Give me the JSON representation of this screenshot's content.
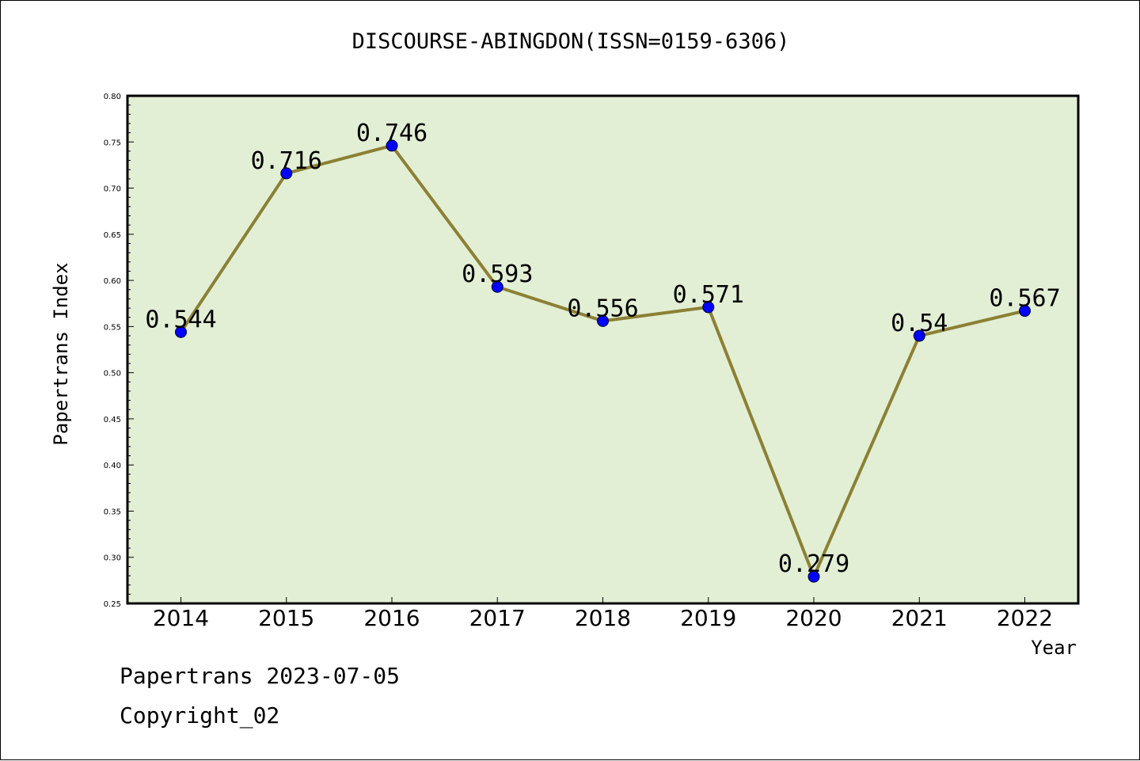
{
  "chart_data": {
    "type": "line",
    "title": "DISCOURSE-ABINGDON(ISSN=0159-6306)",
    "xlabel": "Year",
    "ylabel": "Papertrans Index",
    "x": [
      "2014",
      "2015",
      "2016",
      "2017",
      "2018",
      "2019",
      "2020",
      "2021",
      "2022"
    ],
    "values": [
      0.544,
      0.716,
      0.746,
      0.593,
      0.556,
      0.571,
      0.279,
      0.54,
      0.567
    ],
    "data_labels": [
      "0.544",
      "0.716",
      "0.746",
      "0.593",
      "0.556",
      "0.571",
      "0.279",
      "0.54",
      "0.567"
    ],
    "ylim": [
      0.25,
      0.8
    ],
    "yticks": [
      "0.25",
      "0.30",
      "0.35",
      "0.40",
      "0.45",
      "0.50",
      "0.55",
      "0.60",
      "0.65",
      "0.70",
      "0.75",
      "0.80"
    ],
    "grid": false,
    "legend": "none",
    "colors": {
      "plot_background": "#e2efd5",
      "line": "#8b8034",
      "marker": "#0000ff"
    }
  },
  "footer": {
    "line1": "Papertrans 2023-07-05",
    "line2": "Copyright_02"
  }
}
